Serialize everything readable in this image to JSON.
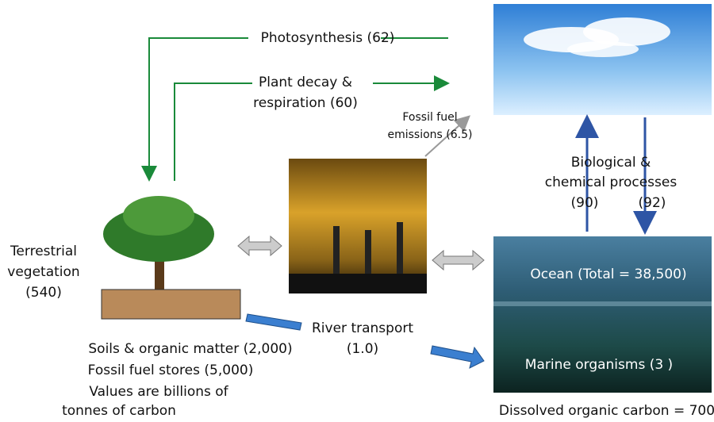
{
  "labels": {
    "photosynthesis": "Photosynthesis (62)",
    "plant_decay": [
      "Plant decay &",
      "respiration (60)"
    ],
    "fossil_emissions": [
      "Fossil fuel",
      "emissions (6.5)"
    ],
    "biological": [
      "Biological &",
      "chemical processes"
    ],
    "ocean_uptake": "(90)",
    "ocean_release": "(92)",
    "terrestrial": [
      "Terrestrial",
      "vegetation",
      "(540)"
    ],
    "ocean_total": "Ocean (Total = 38,500)",
    "marine": "Marine organisms (3 )",
    "river": [
      "River transport",
      "(1.0)"
    ],
    "soils": "Soils & organic matter (2,000)",
    "fossil_stores": "Fossil fuel stores (5,000)",
    "units": [
      "Values are billions of",
      "tonnes of carbon"
    ],
    "dissolved": "Dissolved organic carbon = 700"
  }
}
